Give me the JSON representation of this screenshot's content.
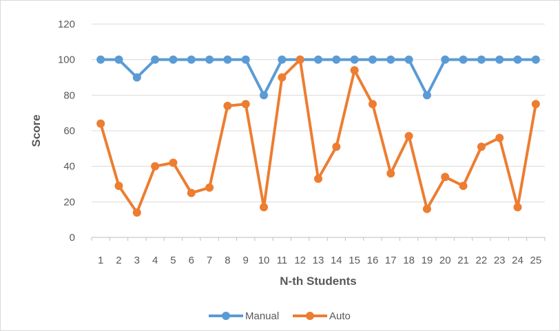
{
  "chart_data": {
    "type": "line",
    "xlabel": "N-th Students",
    "ylabel": "Score",
    "ylim": [
      0,
      120
    ],
    "yticks": [
      0,
      20,
      40,
      60,
      80,
      100,
      120
    ],
    "grid": "horizontal",
    "legend": "bottom",
    "categories": [
      "1",
      "2",
      "3",
      "4",
      "5",
      "6",
      "7",
      "8",
      "9",
      "10",
      "11",
      "12",
      "13",
      "14",
      "15",
      "16",
      "17",
      "18",
      "19",
      "20",
      "21",
      "22",
      "23",
      "24",
      "25"
    ],
    "series": [
      {
        "name": "Manual",
        "color": "#5B9BD5",
        "values": [
          100,
          100,
          90,
          100,
          100,
          100,
          100,
          100,
          100,
          80,
          100,
          100,
          100,
          100,
          100,
          100,
          100,
          100,
          80,
          100,
          100,
          100,
          100,
          100,
          100
        ]
      },
      {
        "name": "Auto",
        "color": "#ED7D31",
        "values": [
          64,
          29,
          14,
          40,
          42,
          25,
          28,
          74,
          75,
          17,
          90,
          100,
          33,
          51,
          94,
          75,
          36,
          57,
          16,
          34,
          29,
          51,
          56,
          17,
          75
        ]
      }
    ]
  }
}
